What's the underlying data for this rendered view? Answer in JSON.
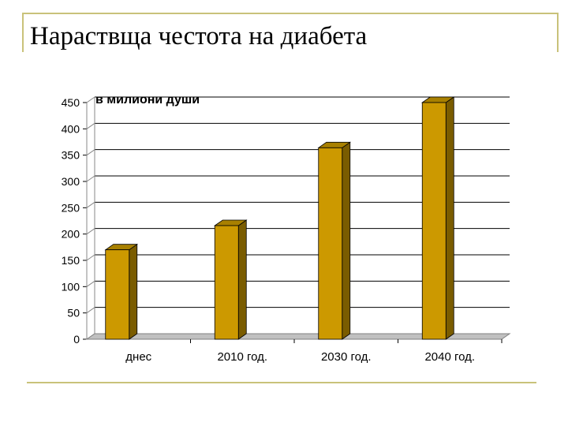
{
  "slide": {
    "title": "Нараствща честота на диабета",
    "accent_color": "#c9c27a"
  },
  "chart_data": {
    "type": "bar",
    "title": "",
    "annotation": "в милиони души",
    "xlabel": "",
    "ylabel": "",
    "categories": [
      "днес",
      "2010 год.",
      "2030 год.",
      "2040 год."
    ],
    "values": [
      170,
      216,
      364,
      450
    ],
    "ylim": [
      0,
      450
    ],
    "yticks": [
      0,
      50,
      100,
      150,
      200,
      250,
      300,
      350,
      400,
      450
    ],
    "grid": true,
    "legend": "none",
    "style": "3d",
    "bar_color": "#cc9900",
    "bar_side_color": "#7a5c00",
    "bar_top_color": "#a88000"
  }
}
